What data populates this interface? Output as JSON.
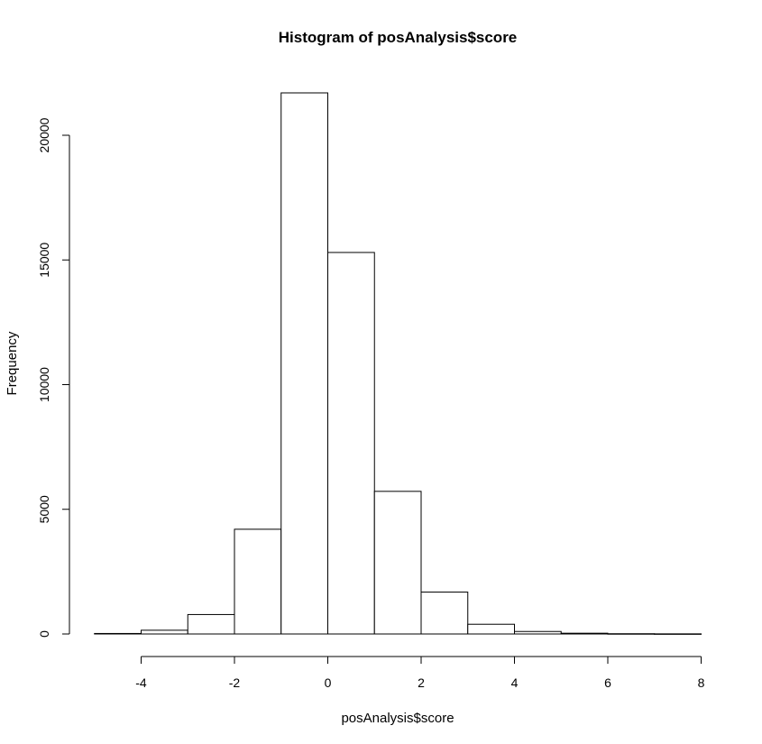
{
  "chart_data": {
    "type": "bar",
    "title": "Histogram of posAnalysis$score",
    "xlabel": "posAnalysis$score",
    "ylabel": "Frequency",
    "xlim": [
      -5,
      8
    ],
    "ylim": [
      0,
      21700
    ],
    "bins": [
      {
        "x0": -5,
        "x1": -4,
        "count": 20
      },
      {
        "x0": -4,
        "x1": -3,
        "count": 150
      },
      {
        "x0": -3,
        "x1": -2,
        "count": 780
      },
      {
        "x0": -2,
        "x1": -1,
        "count": 4200
      },
      {
        "x0": -1,
        "x1": 0,
        "count": 21700
      },
      {
        "x0": 0,
        "x1": 1,
        "count": 15300
      },
      {
        "x0": 1,
        "x1": 2,
        "count": 5720
      },
      {
        "x0": 2,
        "x1": 3,
        "count": 1680
      },
      {
        "x0": 3,
        "x1": 4,
        "count": 390
      },
      {
        "x0": 4,
        "x1": 5,
        "count": 100
      },
      {
        "x0": 5,
        "x1": 6,
        "count": 30
      },
      {
        "x0": 6,
        "x1": 7,
        "count": 10
      },
      {
        "x0": 7,
        "x1": 8,
        "count": 5
      }
    ],
    "x_ticks": [
      -4,
      -2,
      0,
      2,
      4,
      6,
      8
    ],
    "x_tick_labels": [
      "-4",
      "-2",
      "0",
      "2",
      "4",
      "6",
      "8"
    ],
    "y_ticks": [
      0,
      5000,
      10000,
      15000,
      20000
    ],
    "y_tick_labels": [
      "0",
      "5000",
      "10000",
      "15000",
      "20000"
    ],
    "grid": false,
    "fill_color": "#ffffff",
    "stroke_color": "#000000"
  }
}
